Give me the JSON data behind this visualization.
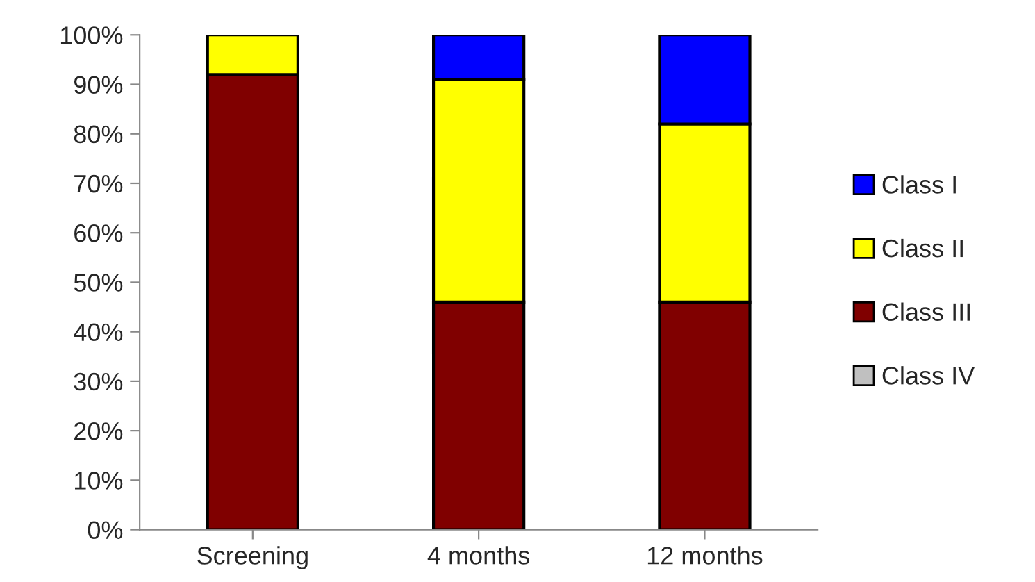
{
  "chart_data": {
    "type": "bar",
    "stacked": true,
    "categories": [
      "Screening",
      "4 months",
      "12 months"
    ],
    "series": [
      {
        "name": "Class IV",
        "color": "#c0c0c0",
        "values": [
          0,
          0,
          0
        ]
      },
      {
        "name": "Class III",
        "color": "#800000",
        "values": [
          92,
          46,
          46
        ]
      },
      {
        "name": "Class II",
        "color": "#ffff00",
        "values": [
          8,
          45,
          36
        ]
      },
      {
        "name": "Class I",
        "color": "#0000ff",
        "values": [
          0,
          9,
          18
        ]
      }
    ],
    "ylim": [
      0,
      100
    ],
    "yticks": [
      {
        "value": 0,
        "label": "0%"
      },
      {
        "value": 10,
        "label": "10%"
      },
      {
        "value": 20,
        "label": "20%"
      },
      {
        "value": 30,
        "label": "30%"
      },
      {
        "value": 40,
        "label": "40%"
      },
      {
        "value": 50,
        "label": "50%"
      },
      {
        "value": 60,
        "label": "60%"
      },
      {
        "value": 70,
        "label": "70%"
      },
      {
        "value": 80,
        "label": "80%"
      },
      {
        "value": 90,
        "label": "90%"
      },
      {
        "value": 100,
        "label": "100%"
      }
    ],
    "grid": false,
    "legend": "right"
  }
}
